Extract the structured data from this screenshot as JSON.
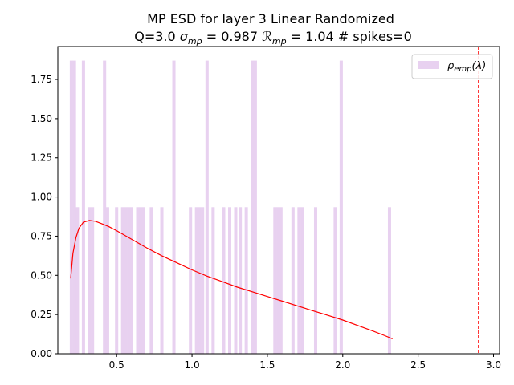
{
  "chart_data": {
    "type": "bar",
    "title_line1": "MP ESD for layer 3 Linear Randomized",
    "title_line2": {
      "prefix": "Q=3.0 ",
      "sigma_symbol": "σ",
      "sigma_sub": "mp",
      "sigma_value": " = 0.987 ",
      "r_symbol": "ℛ",
      "r_sub": "mp",
      "r_value": " = 1.04 # spikes=0"
    },
    "xlabel": "",
    "ylabel": "",
    "xlim": [
      0.11,
      3.04
    ],
    "ylim": [
      0.0,
      1.96
    ],
    "xticks": [
      "0.5",
      "1.0",
      "1.5",
      "2.0",
      "2.5",
      "3.0"
    ],
    "xtick_values": [
      0.5,
      1.0,
      1.5,
      2.0,
      2.5,
      3.0
    ],
    "yticks": [
      "0.00",
      "0.25",
      "0.50",
      "0.75",
      "1.00",
      "1.25",
      "1.50",
      "1.75"
    ],
    "ytick_values": [
      0.0,
      0.25,
      0.5,
      0.75,
      1.0,
      1.25,
      1.5,
      1.75
    ],
    "bin_width": 0.0214,
    "histogram": {
      "name": "ρ_emp(λ)",
      "color": "#e8d1f0",
      "bins": [
        [
          0.2,
          1.87
        ],
        [
          0.22,
          1.87
        ],
        [
          0.24,
          0.935
        ],
        [
          0.28,
          1.87
        ],
        [
          0.32,
          0.935
        ],
        [
          0.34,
          0.935
        ],
        [
          0.42,
          1.87
        ],
        [
          0.44,
          0.935
        ],
        [
          0.5,
          0.935
        ],
        [
          0.54,
          0.935
        ],
        [
          0.56,
          0.935
        ],
        [
          0.58,
          0.935
        ],
        [
          0.6,
          0.935
        ],
        [
          0.64,
          0.935
        ],
        [
          0.66,
          0.935
        ],
        [
          0.68,
          0.935
        ],
        [
          0.73,
          0.935
        ],
        [
          0.8,
          0.935
        ],
        [
          0.88,
          1.87
        ],
        [
          0.99,
          0.935
        ],
        [
          1.03,
          0.935
        ],
        [
          1.05,
          0.935
        ],
        [
          1.07,
          0.935
        ],
        [
          1.1,
          1.87
        ],
        [
          1.14,
          0.935
        ],
        [
          1.21,
          0.935
        ],
        [
          1.25,
          0.935
        ],
        [
          1.29,
          0.935
        ],
        [
          1.32,
          0.935
        ],
        [
          1.36,
          0.935
        ],
        [
          1.4,
          1.87
        ],
        [
          1.42,
          1.87
        ],
        [
          1.55,
          0.935
        ],
        [
          1.57,
          0.935
        ],
        [
          1.59,
          0.935
        ],
        [
          1.67,
          0.935
        ],
        [
          1.71,
          0.935
        ],
        [
          1.73,
          0.935
        ],
        [
          1.82,
          0.935
        ],
        [
          1.95,
          0.935
        ],
        [
          1.99,
          1.87
        ],
        [
          2.31,
          0.935
        ]
      ]
    },
    "mp_curve": {
      "color": "#ff0000",
      "x": [
        0.195,
        0.21,
        0.23,
        0.25,
        0.28,
        0.32,
        0.36,
        0.4,
        0.45,
        0.5,
        0.6,
        0.7,
        0.8,
        0.9,
        1.0,
        1.1,
        1.2,
        1.3,
        1.4,
        1.5,
        1.6,
        1.7,
        1.8,
        1.9,
        2.0,
        2.1,
        2.2,
        2.28,
        2.33
      ],
      "y": [
        0.48,
        0.64,
        0.74,
        0.8,
        0.84,
        0.85,
        0.845,
        0.83,
        0.81,
        0.785,
        0.73,
        0.675,
        0.625,
        0.58,
        0.535,
        0.495,
        0.46,
        0.425,
        0.395,
        0.365,
        0.335,
        0.305,
        0.275,
        0.245,
        0.215,
        0.18,
        0.145,
        0.115,
        0.095
      ]
    },
    "vline": {
      "x": 2.9,
      "color": "#ff0000",
      "style": "dashed"
    },
    "legend": {
      "placement": "top-right",
      "entry": {
        "symbol": "ρ",
        "sub": "emp",
        "suffix": "(λ)"
      }
    }
  }
}
